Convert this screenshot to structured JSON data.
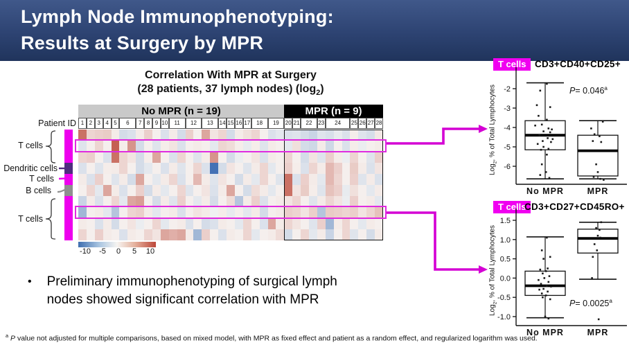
{
  "banner": {
    "title_line1": "Lymph Node Immunophenotyping:",
    "title_line2": "Results at Surgery by MPR"
  },
  "chart_data": [
    {
      "type": "heatmap",
      "title": "Correlation With MPR at Surgery",
      "subtitle_pre": "(28 patients, 37 lymph nodes) (log",
      "subtitle_sub": "2",
      "subtitle_post": ")",
      "patient_id_label": "Patient ID",
      "groups": [
        {
          "label": "No MPR (n = 19)",
          "n": 19
        },
        {
          "label": "MPR (n = 9)",
          "n": 9
        }
      ],
      "patients": [
        {
          "id": "1",
          "nodes": 1
        },
        {
          "id": "2",
          "nodes": 1
        },
        {
          "id": "3",
          "nodes": 1
        },
        {
          "id": "4",
          "nodes": 1
        },
        {
          "id": "5",
          "nodes": 1
        },
        {
          "id": "6",
          "nodes": 2
        },
        {
          "id": "7",
          "nodes": 1
        },
        {
          "id": "8",
          "nodes": 1
        },
        {
          "id": "9",
          "nodes": 1
        },
        {
          "id": "10",
          "nodes": 1
        },
        {
          "id": "11",
          "nodes": 2
        },
        {
          "id": "12",
          "nodes": 2
        },
        {
          "id": "13",
          "nodes": 2
        },
        {
          "id": "14",
          "nodes": 1
        },
        {
          "id": "15",
          "nodes": 1
        },
        {
          "id": "16",
          "nodes": 1
        },
        {
          "id": "17",
          "nodes": 1
        },
        {
          "id": "18",
          "nodes": 2
        },
        {
          "id": "19",
          "nodes": 2
        },
        {
          "id": "20",
          "nodes": 1
        },
        {
          "id": "21",
          "nodes": 1
        },
        {
          "id": "22",
          "nodes": 2
        },
        {
          "id": "23",
          "nodes": 1
        },
        {
          "id": "24",
          "nodes": 3
        },
        {
          "id": "25",
          "nodes": 1
        },
        {
          "id": "26",
          "nodes": 1
        },
        {
          "id": "27",
          "nodes": 1
        },
        {
          "id": "28",
          "nodes": 1
        }
      ],
      "row_groups": [
        {
          "label": "T cells",
          "rows": [
            1,
            2,
            3
          ],
          "color": "#ee00ee"
        },
        {
          "label": "Dendritic cells",
          "rows": [
            4
          ],
          "color": "#4f2d7f"
        },
        {
          "label": "T cells",
          "rows": [
            5
          ],
          "color": "#ee00ee"
        },
        {
          "label": "B cells",
          "rows": [
            6
          ],
          "color": "#8f8f8f"
        },
        {
          "label": "T cells",
          "rows": [
            7,
            8,
            9,
            10
          ],
          "color": "#ee00ee"
        }
      ],
      "highlighted_rows": [
        2,
        8
      ],
      "scale": {
        "min": -10,
        "max": 10,
        "labels": [
          "-10",
          "-5",
          "0",
          "5",
          "10"
        ]
      },
      "values": [
        [
          7,
          1.5,
          1.8,
          2,
          0.5,
          -1.5,
          -1.2,
          0.5,
          1.8,
          0.3,
          -1.2,
          0.5,
          -1.5,
          1.8,
          0.3,
          4,
          0.8,
          1.5,
          -1.5,
          0.5,
          1,
          1.5,
          0.3,
          -1.2,
          -0.8,
          -1.2,
          -1,
          -1.5,
          -2,
          -1,
          -1.3,
          -0.6,
          -1.2,
          0.4,
          -1,
          -1.4,
          0.6
        ],
        [
          -1,
          0.3,
          1.5,
          0.3,
          8,
          0.4,
          5,
          -1.5,
          0.3,
          -1,
          0.4,
          0.8,
          -1.2,
          0.3,
          0.5,
          0.3,
          -0.8,
          1.5,
          1.2,
          0.4,
          -0.6,
          0.4,
          -1,
          0.5,
          0.3,
          -0.8,
          1,
          -1.5,
          -1.8,
          0.5,
          -1.8,
          0.3,
          -1.2,
          0.4,
          -0.5,
          0.3,
          0.5
        ],
        [
          1.5,
          1.8,
          0.3,
          -1.2,
          7,
          1.5,
          0.8,
          -1.5,
          0.4,
          4,
          0.3,
          -1.2,
          1.5,
          0.3,
          -1,
          0.5,
          5,
          0.3,
          -1.5,
          -0.5,
          0.3,
          0.8,
          -1.2,
          0.5,
          0.3,
          1.5,
          0.3,
          -1.5,
          0.8,
          -1,
          1.8,
          0.5,
          -0.5,
          1.5,
          0.3,
          -1,
          1.8
        ],
        [
          -1.2,
          0.3,
          -1,
          0.4,
          0.5,
          1.5,
          0.3,
          -1.5,
          -0.8,
          0.3,
          -1.2,
          0.5,
          -1,
          0.3,
          1.5,
          -1.2,
          -9,
          -1.5,
          0.8,
          0.3,
          -1,
          0.5,
          1.5,
          -0.8,
          0.3,
          1.8,
          0.4,
          -1.2,
          1.5,
          0.5,
          3,
          1.8,
          0.3,
          2,
          0.5,
          -1.2,
          0.8
        ],
        [
          0.5,
          -1.2,
          1.8,
          0.3,
          -1,
          0.5,
          -1.5,
          4,
          0.3,
          -0.8,
          0.5,
          1.5,
          -1.2,
          0.3,
          3,
          0.5,
          -1,
          0.8,
          0.3,
          -1.5,
          0.5,
          -0.8,
          1.5,
          0.3,
          -1,
          7,
          -1.2,
          1.8,
          0.5,
          -0.8,
          3,
          1.5,
          0.3,
          1.8,
          -1,
          0.5,
          -1.2
        ],
        [
          0.3,
          1.5,
          -0.8,
          4,
          0.5,
          -1.2,
          0.3,
          1.8,
          -1.5,
          0.5,
          -0.8,
          0.3,
          1.5,
          -1,
          0.3,
          0.8,
          -1.2,
          0.5,
          4,
          0.3,
          -1.5,
          1.2,
          0.5,
          -0.8,
          0.3,
          7,
          0.8,
          2,
          0.4,
          -1,
          2.5,
          1.8,
          -0.6,
          1,
          0.3,
          -0.8,
          0.5
        ],
        [
          -2,
          0.5,
          -1.2,
          0.3,
          1.5,
          -0.8,
          4,
          4.5,
          0.3,
          -1.5,
          0.5,
          -1,
          1.8,
          0.3,
          -0.8,
          0.5,
          -1.5,
          0.3,
          1.2,
          -3,
          0.5,
          1.8,
          -1.2,
          0.3,
          0.5,
          0.8,
          1.5,
          0.3,
          -1,
          0.5,
          1.5,
          0.8,
          -0.5,
          1.8,
          0.3,
          0.5,
          -0.8
        ],
        [
          -4,
          0.3,
          0.5,
          -0.8,
          -3,
          0.3,
          1.5,
          1.8,
          0.5,
          -0.8,
          0.3,
          0.5,
          -1.2,
          0.3,
          0.8,
          0.5,
          -0.3,
          0.4,
          -0.6,
          0.3,
          -0.8,
          0.5,
          -1.5,
          0.3,
          0.5,
          1.8,
          1.5,
          0.8,
          1.8,
          -3,
          2,
          1.8,
          1.5,
          1.8,
          0.8,
          1.5,
          2.5
        ],
        [
          0.5,
          0.3,
          -1.2,
          0.5,
          -1.5,
          0.3,
          0.8,
          -0.5,
          0.3,
          1.5,
          -0.8,
          0.3,
          0.5,
          -1.2,
          0.3,
          -1.5,
          -1.2,
          0.5,
          0.3,
          -0.8,
          1.5,
          0.3,
          -1.2,
          4,
          0.5,
          1.5,
          0.8,
          0.3,
          -1,
          1.8,
          -4,
          0.5,
          1.5,
          0.3,
          -0.8,
          0.5,
          0.3
        ],
        [
          1.5,
          0.3,
          1.8,
          0.5,
          0.3,
          -1.2,
          0.5,
          0.3,
          1.5,
          0.8,
          4,
          3.5,
          4,
          0.5,
          -4,
          1.8,
          0.3,
          -1.2,
          0.5,
          0.3,
          1.5,
          -0.8,
          0.3,
          0.5,
          1.2,
          -1.5,
          0.3,
          1.5,
          -0.8,
          0.5,
          -2,
          0.3,
          1.5,
          -1,
          0.3,
          -1.5,
          0.5
        ]
      ]
    },
    {
      "type": "boxplot",
      "cell_label": "T cells",
      "marker": "CD3+CD40+CD25+",
      "ylabel_pre": "Log",
      "ylabel_sub": "2",
      "ylabel_post": ", % of Total Lymphocytes",
      "pvalue": {
        "p": "P",
        "eq": "= 0.046",
        "sup": "a"
      },
      "ticks": [
        "-2",
        "-3",
        "-4",
        "-5",
        "-6"
      ],
      "categories": [
        "No MPR",
        "MPR"
      ],
      "series": [
        {
          "name": "No MPR",
          "q1": -5.15,
          "median": -4.4,
          "q3": -3.65,
          "whisker_low": -6.65,
          "whisker_high": -1.7,
          "points": [
            [
              0.1,
              -1.75
            ],
            [
              -0.3,
              -2.1
            ],
            [
              -0.5,
              -2.85
            ],
            [
              0.3,
              -2.95
            ],
            [
              -0.4,
              -3.4
            ],
            [
              0.1,
              -3.6
            ],
            [
              -0.2,
              -3.85
            ],
            [
              -0.6,
              -3.9
            ],
            [
              0.2,
              -4.05
            ],
            [
              0.4,
              -4.1
            ],
            [
              -0.1,
              -4.2
            ],
            [
              0.3,
              -4.25
            ],
            [
              -0.35,
              -4.4
            ],
            [
              0.15,
              -4.55
            ],
            [
              0.45,
              -4.6
            ],
            [
              -0.15,
              -4.7
            ],
            [
              0.35,
              -4.75
            ],
            [
              -0.45,
              -4.85
            ],
            [
              -0.1,
              -5.0
            ],
            [
              0.2,
              -5.1
            ],
            [
              -0.25,
              -5.15
            ],
            [
              0.1,
              -5.4
            ],
            [
              -0.2,
              -5.9
            ],
            [
              0.05,
              -6.3
            ],
            [
              -0.3,
              -6.45
            ],
            [
              0.25,
              -6.6
            ]
          ]
        },
        {
          "name": "MPR",
          "q1": -6.5,
          "median": -5.2,
          "q3": -4.4,
          "whisker_low": -6.65,
          "whisker_high": -3.65,
          "points": [
            [
              0.3,
              -3.7
            ],
            [
              -0.4,
              -4.05
            ],
            [
              -0.2,
              -4.35
            ],
            [
              0.1,
              -4.45
            ],
            [
              -0.3,
              -4.7
            ],
            [
              0.2,
              -4.75
            ],
            [
              -0.1,
              -5.9
            ],
            [
              0.0,
              -6.3
            ],
            [
              -0.25,
              -6.55
            ],
            [
              0.15,
              -6.65
            ],
            [
              0.35,
              -6.7
            ]
          ]
        }
      ]
    },
    {
      "type": "boxplot",
      "cell_label": "T cells",
      "marker": "CD3+CD27+CD45RO+",
      "ylabel_pre": "Log",
      "ylabel_sub": "2",
      "ylabel_post": ", % of Total Lymphocytes",
      "pvalue": {
        "p": "P",
        "eq": "= 0.0025",
        "sup": "a"
      },
      "ticks": [
        "1.5",
        "1.0",
        "0.5",
        "0.0",
        "-0.5",
        "-1.0"
      ],
      "categories": [
        "No MPR",
        "MPR"
      ],
      "series": [
        {
          "name": "No MPR",
          "q1": -0.45,
          "median": -0.2,
          "q3": 0.18,
          "whisker_low": -1.03,
          "whisker_high": 1.07,
          "points": [
            [
              0.1,
              1.05
            ],
            [
              -0.2,
              0.72
            ],
            [
              0.3,
              0.55
            ],
            [
              -0.1,
              0.5
            ],
            [
              0.15,
              0.25
            ],
            [
              -0.3,
              0.22
            ],
            [
              0.05,
              0.18
            ],
            [
              -0.15,
              0.12
            ],
            [
              0.25,
              0.05
            ],
            [
              -0.05,
              0.0
            ],
            [
              -0.4,
              -0.05
            ],
            [
              0.2,
              -0.1
            ],
            [
              -0.25,
              -0.15
            ],
            [
              0.1,
              -0.2
            ],
            [
              0.35,
              -0.22
            ],
            [
              -0.1,
              -0.28
            ],
            [
              -0.35,
              -0.3
            ],
            [
              0.15,
              -0.35
            ],
            [
              -0.2,
              -0.4
            ],
            [
              0.05,
              -0.45
            ],
            [
              -0.15,
              -0.5
            ],
            [
              0.3,
              -0.55
            ],
            [
              0.0,
              -1.0
            ],
            [
              0.2,
              -1.05
            ]
          ]
        },
        {
          "name": "MPR",
          "q1": 0.65,
          "median": 1.03,
          "q3": 1.27,
          "whisker_low": -0.03,
          "whisker_high": 1.45,
          "points": [
            [
              0.2,
              1.45
            ],
            [
              -0.1,
              1.3
            ],
            [
              0.1,
              1.25
            ],
            [
              0.0,
              1.1
            ],
            [
              0.15,
              1.05
            ],
            [
              -0.2,
              0.88
            ],
            [
              -0.05,
              0.72
            ],
            [
              -0.3,
              0.55
            ],
            [
              -0.35,
              0.0
            ],
            [
              0.05,
              -1.07
            ]
          ]
        }
      ]
    }
  ],
  "bullet": {
    "marker": "•",
    "text": "Preliminary immunophenotyping of surgical lymph nodes showed significant correlation with MPR"
  },
  "footnote": {
    "sup": "a",
    "p": "P",
    "rest": " value not adjusted for multiple comparisons, based on mixed model, with MPR as fixed effect and patient as a random effect, and regularized logarithm was used."
  }
}
